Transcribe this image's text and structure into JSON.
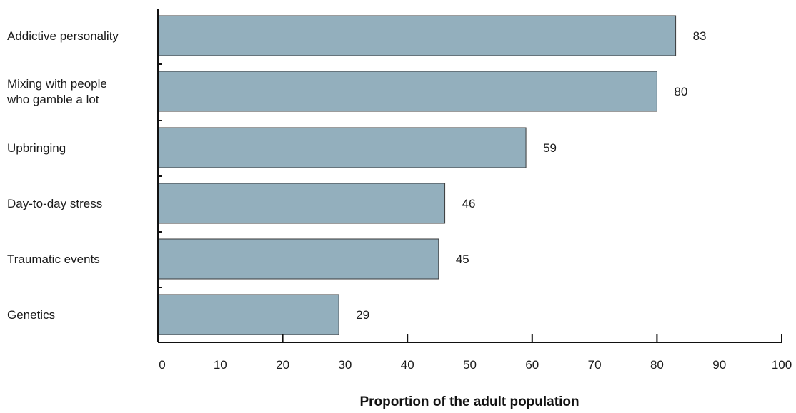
{
  "chart_data": {
    "type": "bar",
    "orientation": "horizontal",
    "categories": [
      [
        "Addictive personality"
      ],
      [
        "Mixing with people",
        "who gamble a lot"
      ],
      [
        "Upbringing"
      ],
      [
        "Day-to-day stress"
      ],
      [
        "Traumatic events"
      ],
      [
        "Genetics"
      ]
    ],
    "values": [
      83,
      80,
      59,
      46,
      45,
      29
    ],
    "data_labels": [
      "83",
      "80",
      "59",
      "46",
      "45",
      "29"
    ],
    "title": "",
    "xlabel": "Proportion of the adult population",
    "ylabel": "",
    "xlim": [
      0,
      100
    ],
    "xticks": [
      0,
      10,
      20,
      30,
      40,
      50,
      60,
      70,
      80,
      90,
      100
    ],
    "grid": false,
    "legend": "none",
    "bar_color": "#93afbd"
  }
}
